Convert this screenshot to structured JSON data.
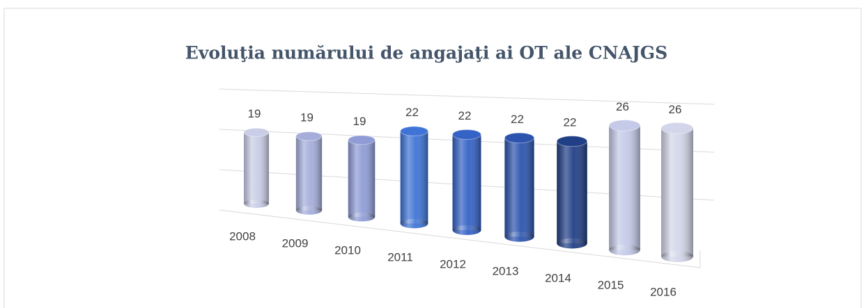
{
  "chart_data": {
    "type": "cylinder",
    "title": "Evoluţia numărului de angajaţi ai OT ale CNAJGS",
    "categories": [
      "2008",
      "2009",
      "2010",
      "2011",
      "2012",
      "2013",
      "2014",
      "2015",
      "2016"
    ],
    "values": [
      19,
      19,
      19,
      22,
      22,
      22,
      22,
      26,
      26
    ],
    "colors": [
      "#c9cde6",
      "#a5aedb",
      "#8f9cd6",
      "#3f74d6",
      "#3462c6",
      "#2c54ae",
      "#213f86",
      "#c4cae8",
      "#d3d6ea"
    ],
    "ylim": [
      0,
      30
    ],
    "grid": true
  }
}
